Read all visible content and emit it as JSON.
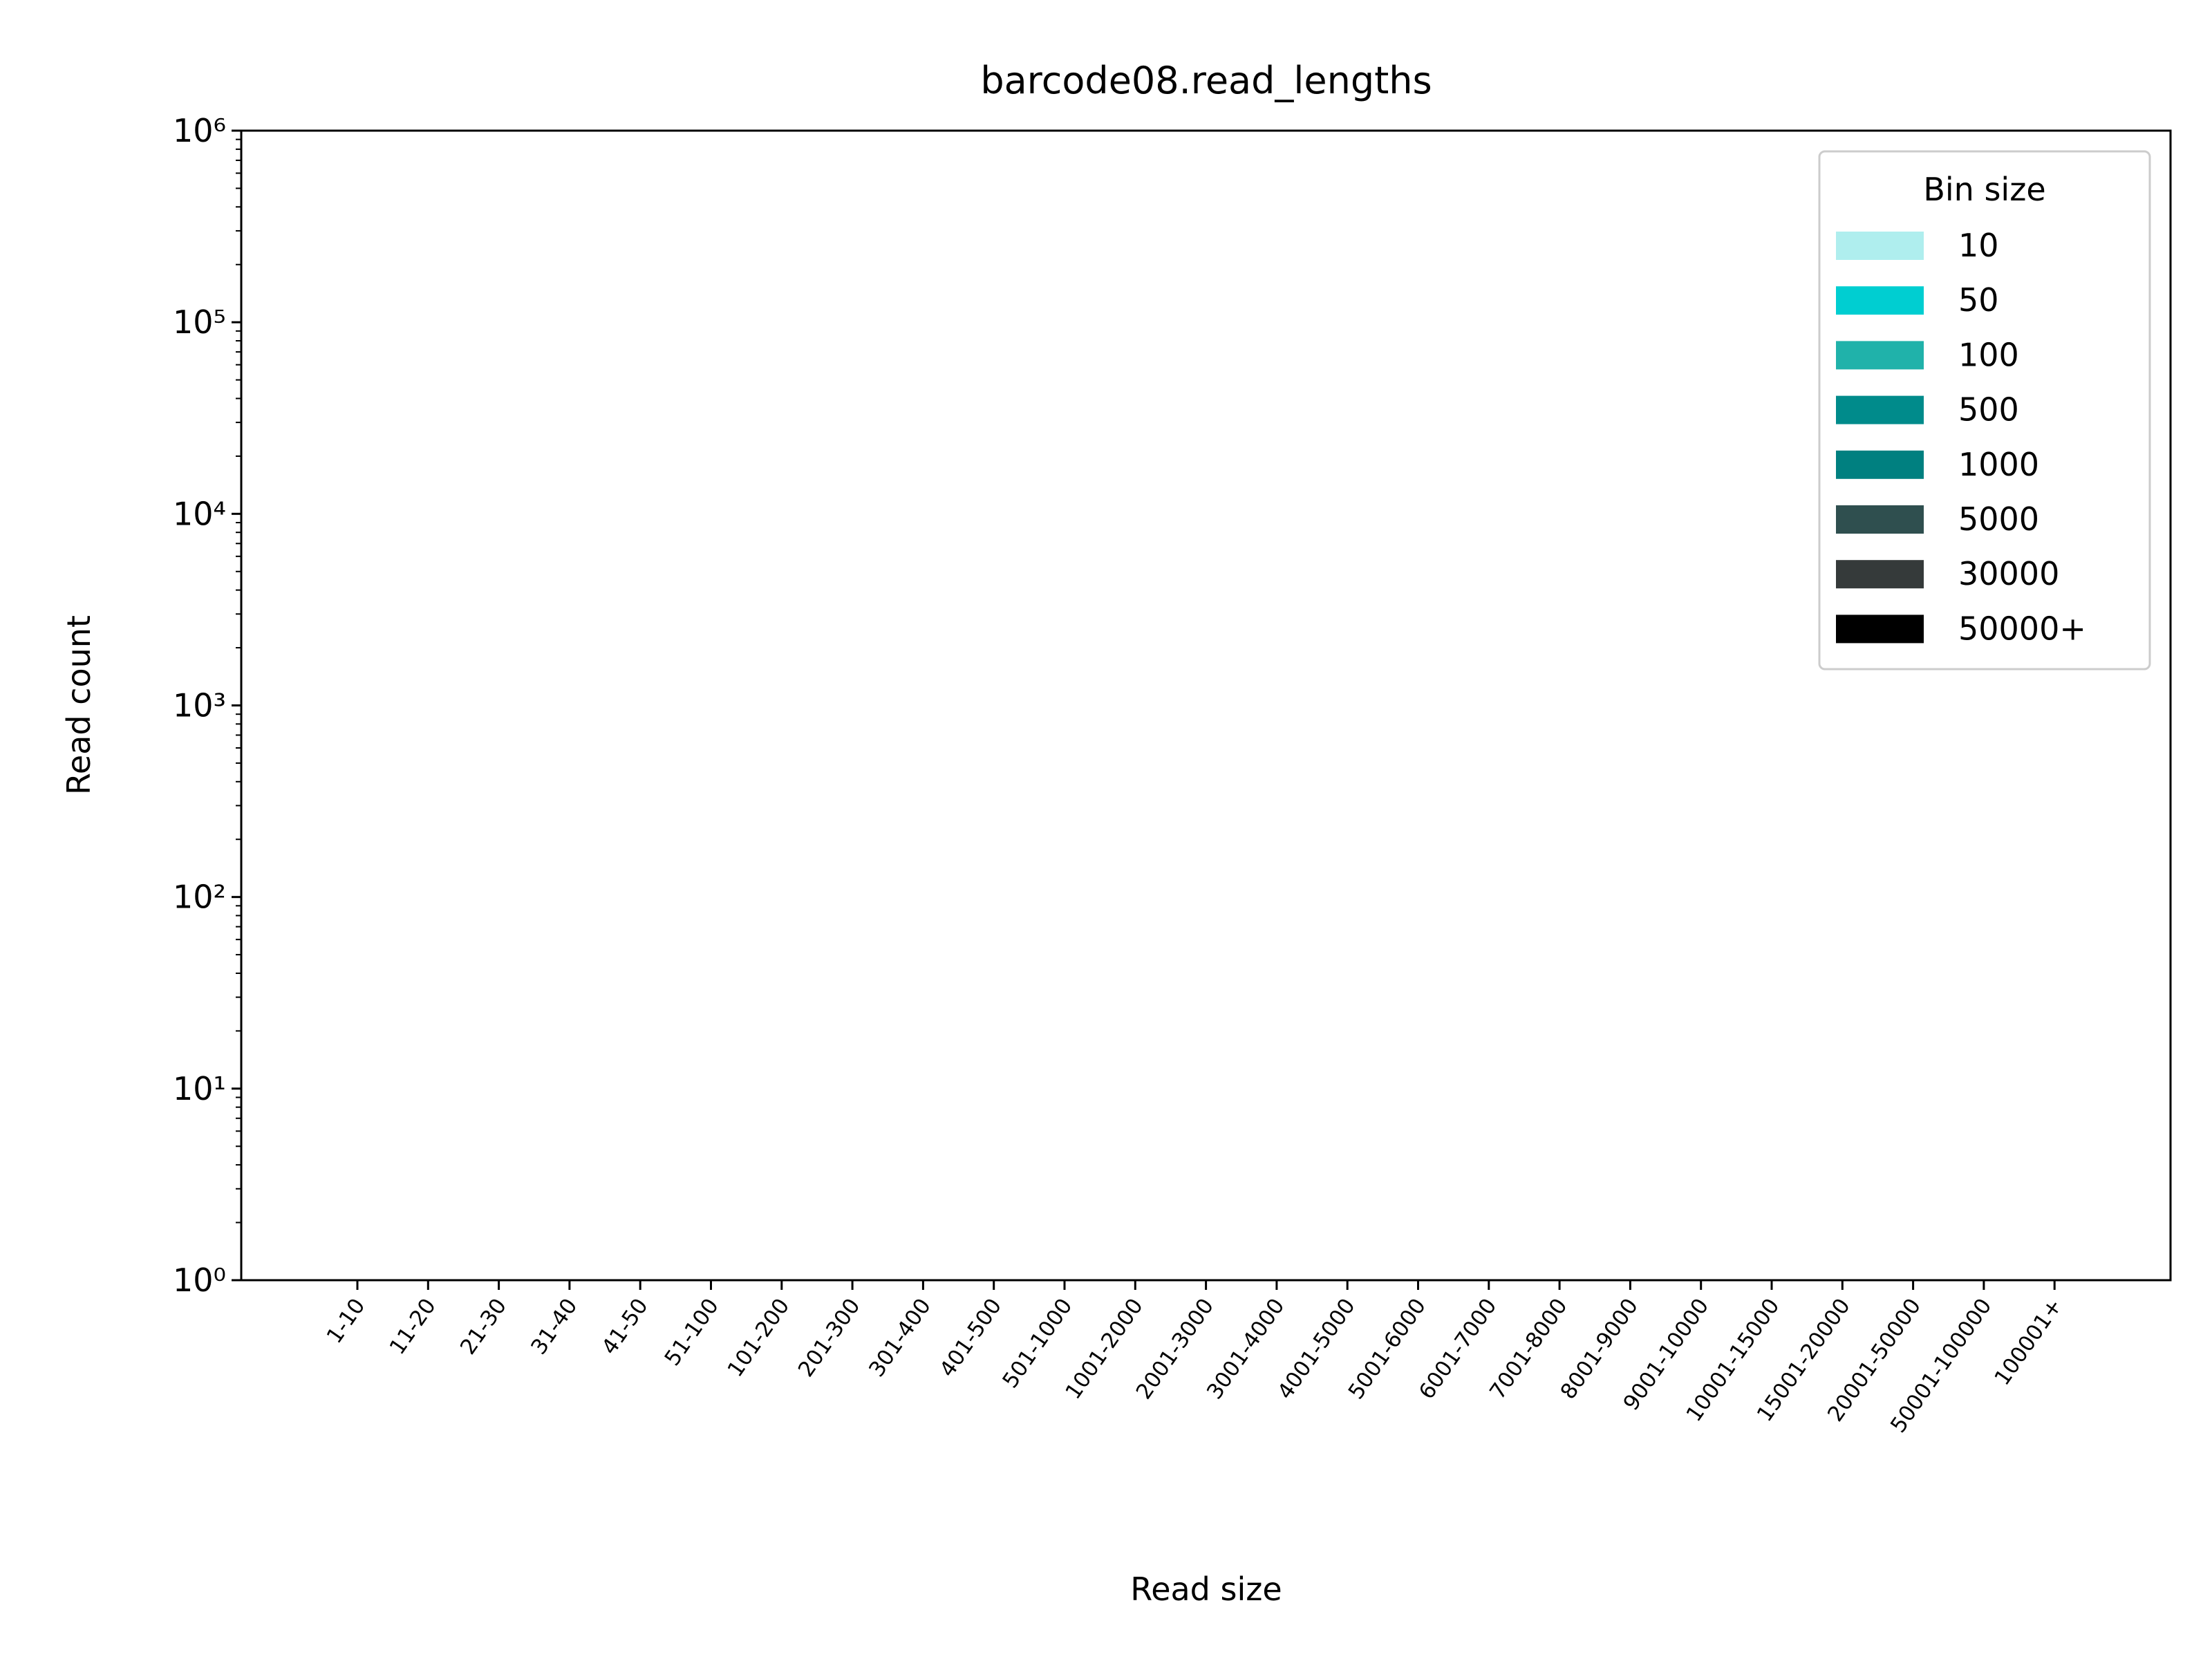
{
  "chart_data": {
    "type": "bar",
    "title": "barcode08.read_lengths",
    "xlabel": "Read size",
    "ylabel": "Read count",
    "categories": [
      "1-10",
      "11-20",
      "21-30",
      "31-40",
      "41-50",
      "51-100",
      "101-200",
      "201-300",
      "301-400",
      "401-500",
      "501-1000",
      "1001-2000",
      "2001-3000",
      "3001-4000",
      "4001-5000",
      "5001-6000",
      "6001-7000",
      "7001-8000",
      "8001-9000",
      "9001-10000",
      "10001-15000",
      "15001-20000",
      "20001-50000",
      "50001-100000",
      "100001+"
    ],
    "log_y": true,
    "ylim": [
      1,
      1000000
    ],
    "yticks": [
      {
        "value": 1,
        "label": "10⁰"
      },
      {
        "value": 10,
        "label": "10¹"
      },
      {
        "value": 100,
        "label": "10²"
      },
      {
        "value": 1000,
        "label": "10³"
      },
      {
        "value": 10000,
        "label": "10⁴"
      },
      {
        "value": 100000,
        "label": "10⁵"
      },
      {
        "value": 1000000,
        "label": "10⁶"
      }
    ],
    "legend": {
      "title": "Bin size",
      "position": "upper right"
    },
    "series": [
      {
        "name": "10",
        "color": "#afeeee"
      },
      {
        "name": "50",
        "color": "#00ced1"
      },
      {
        "name": "100",
        "color": "#20b2aa"
      },
      {
        "name": "500",
        "color": "#008b8b"
      },
      {
        "name": "1000",
        "color": "#008080"
      },
      {
        "name": "5000",
        "color": "#2f4f4f"
      },
      {
        "name": "30000",
        "color": "#353a3a"
      },
      {
        "name": "50000+",
        "color": "#000000"
      }
    ]
  }
}
